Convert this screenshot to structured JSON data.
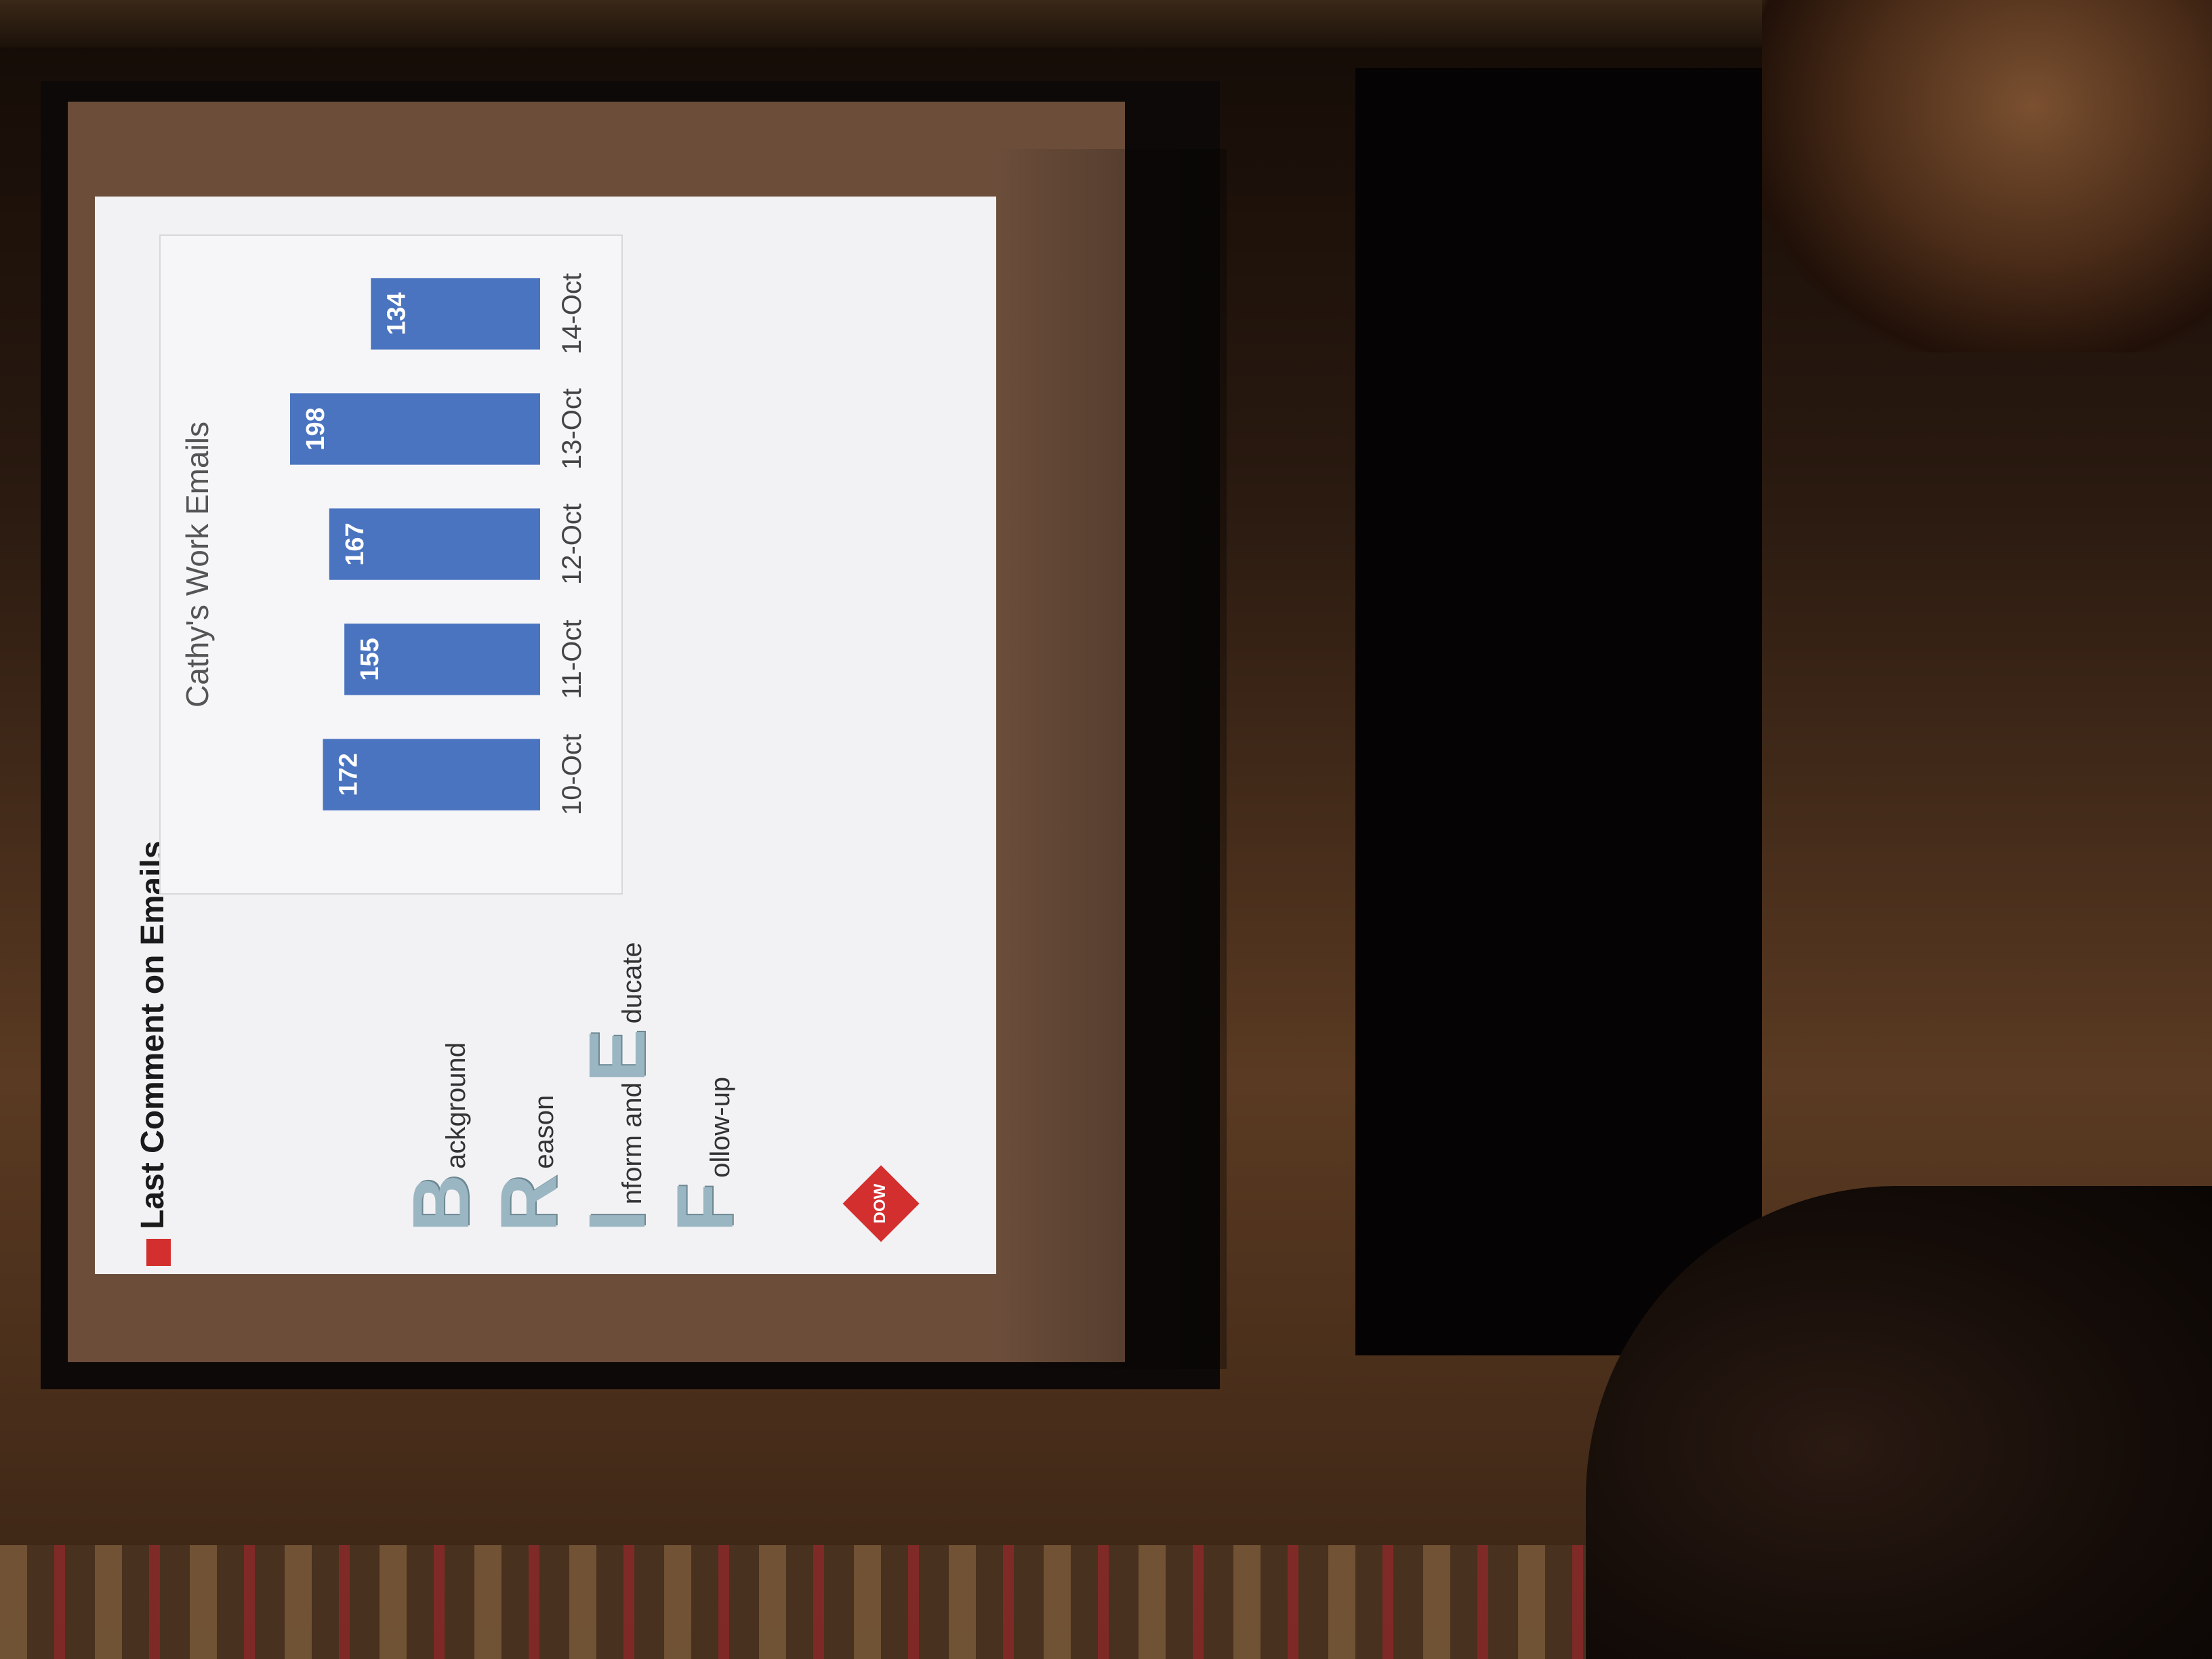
{
  "slide": {
    "title": "Last Comment on Emails",
    "mnemonic": [
      {
        "letter": "B",
        "text": "ackground"
      },
      {
        "letter": "R",
        "text": "eason"
      },
      {
        "letter": "I",
        "text": "nform and "
      },
      {
        "letter": "E",
        "text": "ducate"
      },
      {
        "letter": "F",
        "text": "ollow-up"
      }
    ],
    "logo": "DOW"
  },
  "chart_data": {
    "type": "bar",
    "title": "Cathy's Work Emails",
    "categories": [
      "10-Oct",
      "11-Oct",
      "12-Oct",
      "13-Oct",
      "14-Oct"
    ],
    "values": [
      172,
      155,
      167,
      198,
      134
    ],
    "data_labels": [
      "172",
      "155",
      "167",
      "198",
      "134"
    ],
    "bar_color": "#4a74c0",
    "ylim": [
      0,
      220
    ],
    "grid": false,
    "legend": "none"
  }
}
